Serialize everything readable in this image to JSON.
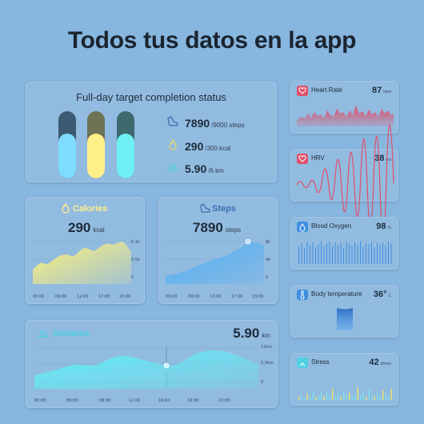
{
  "headline": "Todos tus datos en la app",
  "target": {
    "title": "Full-day target completion status",
    "steps": {
      "value": "7890",
      "goal": "/9000 steps"
    },
    "calories": {
      "value": "290",
      "goal": "/300 kcal"
    },
    "distance": {
      "value": "5.90",
      "goal": "/6 km"
    },
    "colors": {
      "steps": "#7fdcff",
      "calories": "#fff08a",
      "distance": "#6ff0f5"
    }
  },
  "calories": {
    "title": "Calories",
    "value": "290",
    "unit": "kcal",
    "y_ticks": [
      "0.1k",
      "0.5k",
      "0"
    ],
    "x_ticks": [
      "00:00",
      "09:00",
      "12:00",
      "17:00",
      "23:00"
    ]
  },
  "steps": {
    "title": "Steps",
    "value": "7890",
    "unit": "steps",
    "y_ticks": [
      "8k",
      "4k",
      "0"
    ],
    "x_ticks": [
      "00:00",
      "09:00",
      "13:00",
      "17:00",
      "23:00"
    ]
  },
  "distance": {
    "title": "Distance",
    "value": "5.90",
    "unit": "km",
    "y_ticks": [
      "11km",
      "5.9km",
      "0"
    ],
    "x_ticks": [
      "00:00",
      "06:00",
      "08:00",
      "12:00",
      "16:00",
      "18:00",
      "23:00"
    ]
  },
  "heart_rate": {
    "title": "Heart Rate",
    "value": "87",
    "unit": "bpm",
    "icon": "heart-icon",
    "color": "#e0506a"
  },
  "hrv": {
    "title": "HRV",
    "value": "38",
    "unit": "ms",
    "icon": "heart-icon",
    "color": "#e0506a"
  },
  "blood_oxygen": {
    "title": "Blood Oxygen",
    "value": "98",
    "unit": "%",
    "icon": "drop-icon",
    "color": "#3f8fe0"
  },
  "body_temperature": {
    "title": "Body temperature",
    "value": "36°",
    "unit": "C",
    "icon": "thermometer-icon",
    "color": "#3f8fe0"
  },
  "stress": {
    "title": "Stress",
    "value": "42",
    "unit": "stress",
    "icon": "stress-icon",
    "color": "#4fd0e0"
  }
}
